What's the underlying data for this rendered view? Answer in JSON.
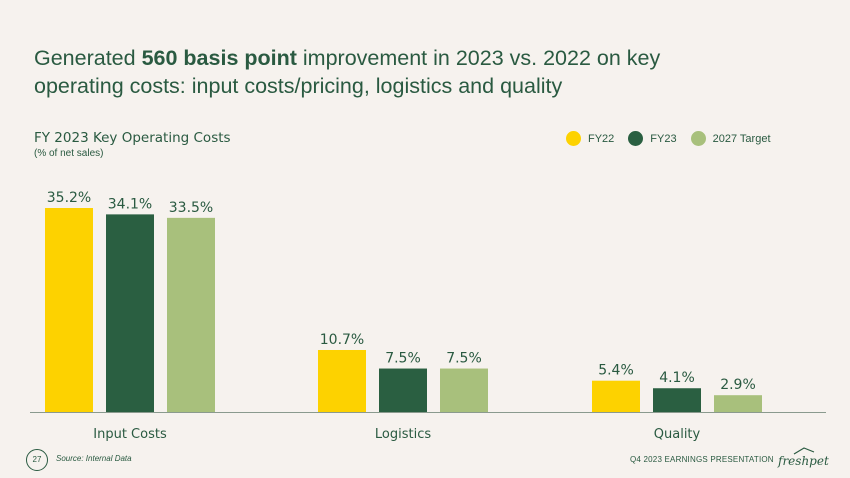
{
  "headline": {
    "pre": "Generated ",
    "bold": "560 basis point",
    "post": " improvement in 2023 vs. 2022 on key operating costs: input costs/pricing, logistics and quality"
  },
  "chart_title": "FY 2023 Key Operating Costs",
  "chart_subtitle": "(% of net sales)",
  "chart_data": {
    "type": "bar",
    "title": "FY 2023 Key Operating Costs",
    "ylabel": "(% of net sales)",
    "xlabel": "",
    "categories": [
      "Input Costs",
      "Logistics",
      "Quality"
    ],
    "series": [
      {
        "name": "FY22",
        "color": "#fdd200",
        "values": [
          35.2,
          10.7,
          5.4
        ],
        "labels": [
          "35.2%",
          "10.7%",
          "5.4%"
        ]
      },
      {
        "name": "FY23",
        "color": "#2a5f41",
        "values": [
          34.1,
          7.5,
          4.1
        ],
        "labels": [
          "34.1%",
          "7.5%",
          "4.1%"
        ]
      },
      {
        "name": "2027 Target",
        "color": "#a8c07c",
        "values": [
          33.5,
          7.5,
          2.9
        ],
        "labels": [
          "33.5%",
          "7.5%",
          "2.9%"
        ]
      }
    ],
    "ylim": [
      0,
      35.2
    ],
    "grid": false,
    "legend": "top-right"
  },
  "footer": {
    "page_number": "27",
    "source": "Source: Internal Data",
    "presentation": "Q4 2023 EARNINGS PRESENTATION",
    "logo_text": "freshpet"
  }
}
